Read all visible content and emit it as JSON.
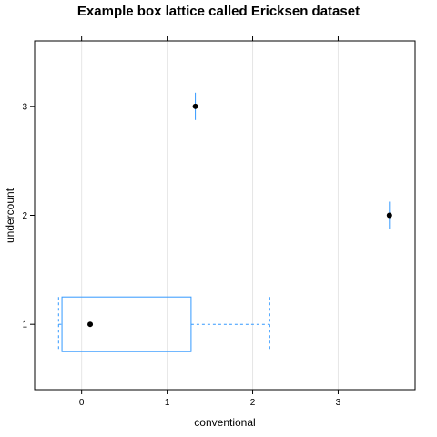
{
  "chart_data": {
    "type": "box",
    "orientation": "horizontal",
    "title": "Example box lattice called Ericksen dataset",
    "xlabel": "conventional",
    "ylabel": "undercount",
    "x_ticks": [
      "0",
      "1",
      "2",
      "3"
    ],
    "y_ticks": [
      "1",
      "2",
      "3"
    ],
    "xlim": [
      -0.55,
      3.9
    ],
    "ylim": [
      0.4,
      3.6
    ],
    "grid": "vertical",
    "box_color": "#3399ff",
    "median_color": "#000000",
    "grid_color": "#e6e6e6",
    "boxes": [
      {
        "category": "1",
        "min": -0.27,
        "q1": -0.23,
        "median": 0.1,
        "q3": 1.28,
        "max": 2.2
      },
      {
        "category": "2",
        "min": 3.6,
        "q1": 3.6,
        "median": 3.6,
        "q3": 3.6,
        "max": 3.6
      },
      {
        "category": "3",
        "min": 1.33,
        "q1": 1.33,
        "median": 1.33,
        "q3": 1.33,
        "max": 1.33
      }
    ]
  }
}
